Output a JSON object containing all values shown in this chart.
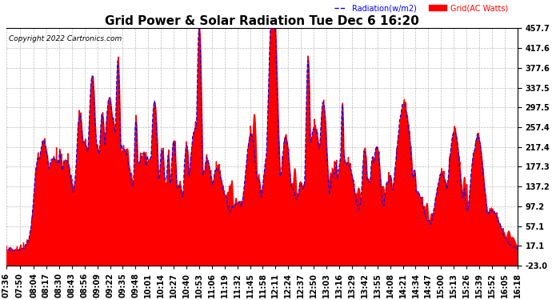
{
  "title": "Grid Power & Solar Radiation Tue Dec 6 16:20",
  "copyright": "Copyright 2022 Cartronics.com",
  "legend_radiation": "Radiation(w/m2)",
  "legend_grid": "Grid(AC Watts)",
  "ylabel_right_ticks": [
    457.7,
    417.6,
    377.6,
    337.5,
    297.5,
    257.4,
    217.4,
    177.3,
    137.2,
    97.2,
    57.1,
    17.1,
    -23.0
  ],
  "ylim": [
    -23.0,
    457.7
  ],
  "background_color": "#ffffff",
  "grid_color": "#aaaaaa",
  "radiation_color": "#0000ff",
  "grid_fill_color": "#ff0000",
  "title_fontsize": 11,
  "tick_fontsize": 7.0,
  "xlabel_ticks": [
    "07:36",
    "07:50",
    "08:04",
    "08:17",
    "08:30",
    "08:43",
    "08:56",
    "09:09",
    "09:22",
    "09:35",
    "09:48",
    "10:01",
    "10:14",
    "10:27",
    "10:40",
    "10:53",
    "11:06",
    "11:19",
    "11:32",
    "11:45",
    "11:58",
    "12:11",
    "12:24",
    "12:37",
    "12:50",
    "13:03",
    "13:16",
    "13:29",
    "13:42",
    "13:55",
    "14:08",
    "14:21",
    "14:34",
    "14:47",
    "15:00",
    "15:13",
    "15:26",
    "15:39",
    "15:52",
    "16:05",
    "16:18"
  ]
}
